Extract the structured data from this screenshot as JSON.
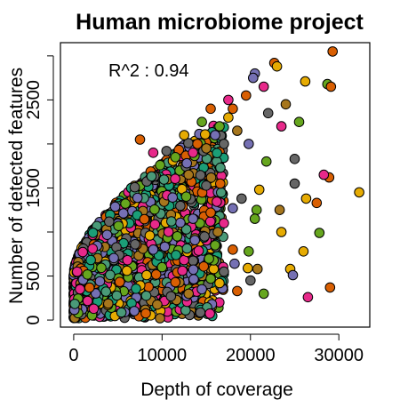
{
  "chart_data": {
    "type": "scatter",
    "title": "Human microbiome project",
    "xlabel": "Depth of coverage",
    "ylabel": "Number of detected features",
    "annotation": "R^2 : 0.94",
    "xlim": [
      -1500,
      33500
    ],
    "ylim": [
      -80,
      3150
    ],
    "x_ticks": [
      0,
      10000,
      20000,
      30000
    ],
    "x_tick_labels": [
      "0",
      "10000",
      "20000",
      "30000"
    ],
    "y_ticks": [
      0,
      500,
      1500,
      2500
    ],
    "y_tick_labels": [
      "0",
      "500",
      "1500",
      "2500"
    ],
    "y_minor_ticks": [
      1000,
      2000,
      3000
    ],
    "grid": false,
    "legend": "none",
    "marker_edge_color": "#000000",
    "palette": [
      "#d95f02",
      "#7570b3",
      "#e7298a",
      "#66a61e",
      "#e6ab02",
      "#a6761d",
      "#666666",
      "#1b9e77",
      "#4a9a78"
    ],
    "points": [
      [
        29300,
        3050,
        0
      ],
      [
        28700,
        2680,
        3
      ],
      [
        29100,
        2650,
        0
      ],
      [
        26200,
        2710,
        4
      ],
      [
        22700,
        2920,
        0
      ],
      [
        20500,
        2800,
        1
      ],
      [
        23000,
        2880,
        4
      ],
      [
        21500,
        2650,
        2
      ],
      [
        19500,
        2550,
        0
      ],
      [
        20300,
        2750,
        1
      ],
      [
        24000,
        2450,
        5
      ],
      [
        22000,
        2350,
        6
      ],
      [
        23500,
        2200,
        2
      ],
      [
        25500,
        2250,
        3
      ],
      [
        25000,
        1830,
        6
      ],
      [
        21800,
        1800,
        3
      ],
      [
        19800,
        2000,
        1
      ],
      [
        18500,
        2150,
        5
      ],
      [
        17500,
        2300,
        4
      ],
      [
        16500,
        2200,
        3
      ],
      [
        18000,
        2400,
        0
      ],
      [
        17500,
        2500,
        2
      ],
      [
        15500,
        2400,
        0
      ],
      [
        14500,
        2250,
        3
      ],
      [
        16000,
        2100,
        1
      ],
      [
        17000,
        2000,
        6
      ],
      [
        15000,
        1950,
        5
      ],
      [
        13500,
        1900,
        2
      ],
      [
        12500,
        2100,
        4
      ],
      [
        14000,
        2000,
        0
      ],
      [
        11500,
        1850,
        3
      ],
      [
        12800,
        1780,
        1
      ],
      [
        10500,
        1920,
        6
      ],
      [
        13000,
        1650,
        5
      ],
      [
        7500,
        2050,
        0
      ],
      [
        9000,
        1900,
        2
      ],
      [
        32300,
        1450,
        4
      ],
      [
        28900,
        1620,
        0
      ],
      [
        28300,
        1650,
        2
      ],
      [
        25000,
        1550,
        6
      ],
      [
        26300,
        1380,
        4
      ],
      [
        27500,
        1330,
        0
      ],
      [
        23300,
        1250,
        5
      ],
      [
        21000,
        1480,
        4
      ],
      [
        20700,
        1250,
        3
      ],
      [
        19000,
        1380,
        6
      ],
      [
        18000,
        1270,
        1
      ],
      [
        20500,
        1150,
        3
      ],
      [
        23500,
        1000,
        4
      ],
      [
        27800,
        990,
        3
      ],
      [
        17000,
        1100,
        2
      ],
      [
        15500,
        1220,
        0
      ],
      [
        16300,
        1000,
        5
      ],
      [
        14800,
        950,
        6
      ],
      [
        13500,
        1150,
        1
      ],
      [
        16000,
        850,
        3
      ],
      [
        18000,
        800,
        0
      ],
      [
        19800,
        780,
        3
      ],
      [
        20800,
        580,
        5
      ],
      [
        19700,
        590,
        4
      ],
      [
        18200,
        640,
        1
      ],
      [
        17000,
        550,
        6
      ],
      [
        15500,
        470,
        3
      ],
      [
        16500,
        420,
        4
      ],
      [
        20000,
        450,
        6
      ],
      [
        24500,
        580,
        4
      ],
      [
        24800,
        510,
        1
      ],
      [
        26000,
        780,
        4
      ],
      [
        26500,
        260,
        2
      ],
      [
        29000,
        370,
        0
      ],
      [
        18500,
        330,
        0
      ],
      [
        21500,
        300,
        3
      ],
      [
        14500,
        350,
        1
      ],
      [
        13000,
        300,
        5
      ],
      [
        11500,
        430,
        0
      ],
      [
        12300,
        560,
        2
      ],
      [
        10000,
        600,
        3
      ],
      [
        9000,
        800,
        1
      ]
    ]
  }
}
